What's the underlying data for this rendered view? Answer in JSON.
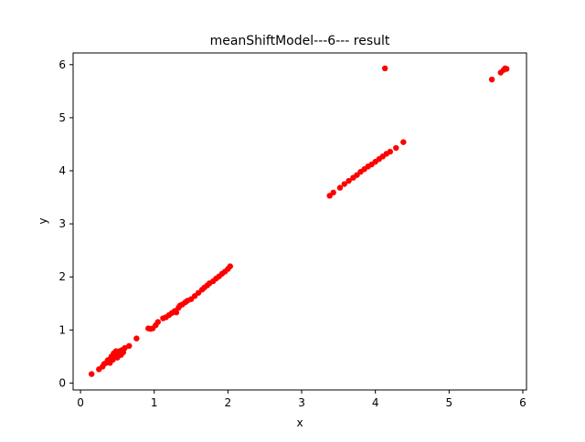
{
  "chart_data": {
    "type": "scatter",
    "title": "meanShiftModel---6--- result",
    "xlabel": "x",
    "ylabel": "y",
    "xlim": [
      -0.1,
      6.05
    ],
    "ylim": [
      -0.13,
      6.22
    ],
    "xticks": [
      0,
      1,
      2,
      3,
      4,
      5,
      6
    ],
    "yticks": [
      0,
      1,
      2,
      3,
      4,
      5,
      6
    ],
    "xtick_labels": [
      "0",
      "1",
      "2",
      "3",
      "4",
      "5",
      "6"
    ],
    "ytick_labels": [
      "0",
      "1",
      "2",
      "3",
      "4",
      "5",
      "6"
    ],
    "grid": false,
    "legend": "none",
    "marker_color": "#ff0000",
    "series": [
      {
        "points": [
          [
            0.15,
            0.17
          ],
          [
            0.25,
            0.26
          ],
          [
            0.3,
            0.31
          ],
          [
            0.32,
            0.36
          ],
          [
            0.35,
            0.38
          ],
          [
            0.37,
            0.43
          ],
          [
            0.4,
            0.45
          ],
          [
            0.4,
            0.38
          ],
          [
            0.42,
            0.5
          ],
          [
            0.44,
            0.44
          ],
          [
            0.45,
            0.56
          ],
          [
            0.47,
            0.5
          ],
          [
            0.48,
            0.6
          ],
          [
            0.5,
            0.48
          ],
          [
            0.5,
            0.55
          ],
          [
            0.53,
            0.6
          ],
          [
            0.55,
            0.53
          ],
          [
            0.56,
            0.62
          ],
          [
            0.58,
            0.58
          ],
          [
            0.6,
            0.66
          ],
          [
            0.66,
            0.7
          ],
          [
            0.76,
            0.84
          ],
          [
            0.92,
            1.03
          ],
          [
            0.95,
            1.02
          ],
          [
            0.98,
            1.03
          ],
          [
            1.02,
            1.09
          ],
          [
            1.05,
            1.15
          ],
          [
            1.12,
            1.22
          ],
          [
            1.16,
            1.24
          ],
          [
            1.2,
            1.28
          ],
          [
            1.24,
            1.32
          ],
          [
            1.28,
            1.36
          ],
          [
            1.3,
            1.33
          ],
          [
            1.33,
            1.42
          ],
          [
            1.35,
            1.46
          ],
          [
            1.38,
            1.48
          ],
          [
            1.42,
            1.52
          ],
          [
            1.45,
            1.55
          ],
          [
            1.5,
            1.58
          ],
          [
            1.55,
            1.64
          ],
          [
            1.6,
            1.7
          ],
          [
            1.65,
            1.76
          ],
          [
            1.68,
            1.8
          ],
          [
            1.72,
            1.84
          ],
          [
            1.75,
            1.88
          ],
          [
            1.8,
            1.92
          ],
          [
            1.84,
            1.97
          ],
          [
            1.88,
            2.01
          ],
          [
            1.92,
            2.06
          ],
          [
            1.96,
            2.1
          ],
          [
            2.0,
            2.15
          ],
          [
            2.03,
            2.2
          ],
          [
            3.38,
            3.53
          ],
          [
            3.43,
            3.59
          ],
          [
            3.52,
            3.68
          ],
          [
            3.58,
            3.75
          ],
          [
            3.64,
            3.81
          ],
          [
            3.7,
            3.87
          ],
          [
            3.75,
            3.92
          ],
          [
            3.8,
            3.98
          ],
          [
            3.85,
            4.03
          ],
          [
            3.9,
            4.08
          ],
          [
            3.95,
            4.12
          ],
          [
            4.0,
            4.17
          ],
          [
            4.05,
            4.22
          ],
          [
            4.1,
            4.27
          ],
          [
            4.15,
            4.32
          ],
          [
            4.2,
            4.36
          ],
          [
            4.28,
            4.43
          ],
          [
            4.38,
            4.54
          ],
          [
            4.13,
            5.93
          ],
          [
            5.58,
            5.72
          ],
          [
            5.7,
            5.85
          ],
          [
            5.74,
            5.9
          ],
          [
            5.76,
            5.93
          ],
          [
            5.78,
            5.92
          ]
        ]
      }
    ]
  }
}
